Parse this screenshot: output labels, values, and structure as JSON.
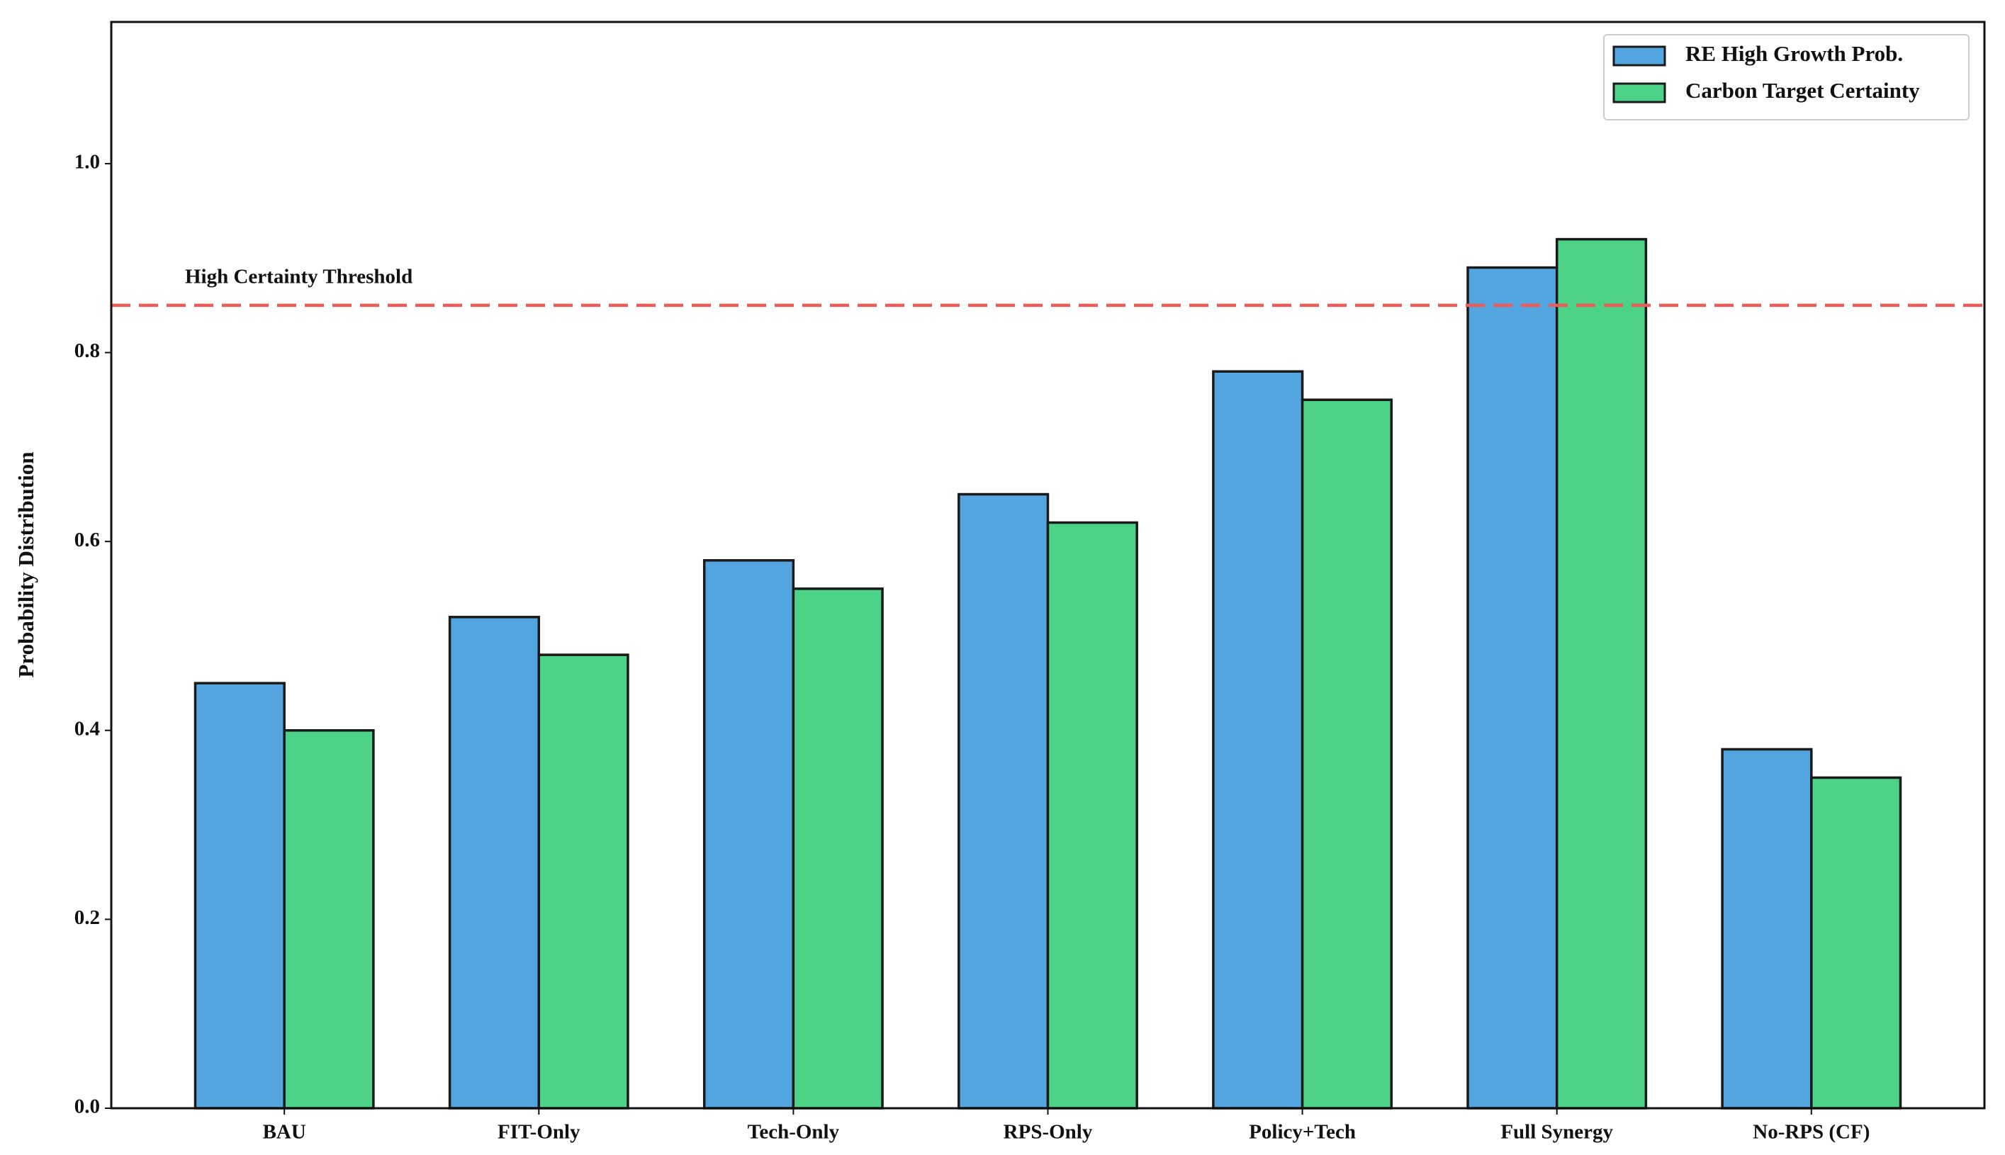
{
  "chart_data": {
    "type": "bar",
    "y_label": "Probability Distribution",
    "categories": [
      "BAU",
      "FIT-Only",
      "Tech-Only",
      "RPS-Only",
      "Policy+Tech",
      "Full Synergy",
      "No-RPS (CF)"
    ],
    "series": [
      {
        "name": "RE High Growth Prob.",
        "color": "#53a5e0",
        "values": [
          0.45,
          0.52,
          0.58,
          0.65,
          0.78,
          0.89,
          0.38
        ]
      },
      {
        "name": "Carbon Target Certainty",
        "color": "#4cd387",
        "values": [
          0.4,
          0.48,
          0.55,
          0.62,
          0.75,
          0.92,
          0.35
        ]
      }
    ],
    "ylim": [
      0,
      1.15
    ],
    "yticks": [
      {
        "value": 0,
        "label": "0.0"
      },
      0.2,
      0.4,
      0.6,
      0.8,
      {
        "value": 1,
        "label": "1.0"
      }
    ],
    "threshold": {
      "value": 0.85,
      "label": "High Certainty Threshold",
      "color": "#ee5a55"
    },
    "legend": "upper right",
    "grid": false
  }
}
